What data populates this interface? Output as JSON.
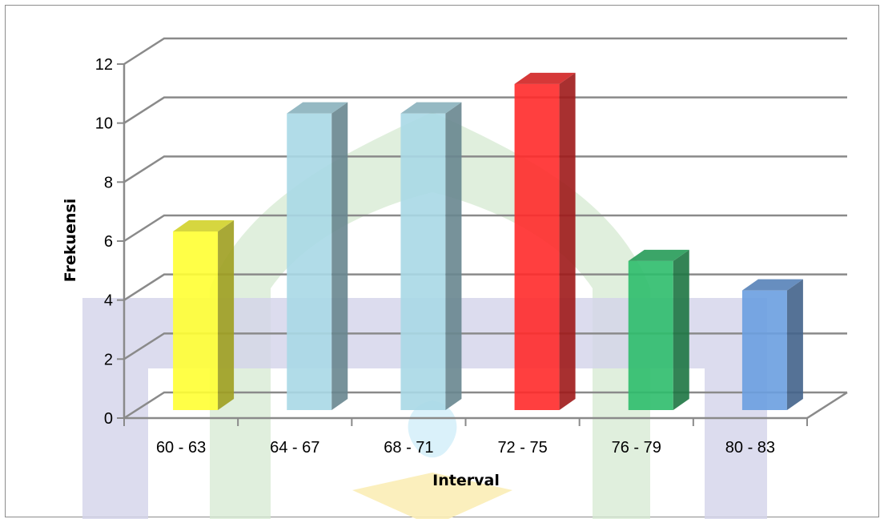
{
  "chart_data": {
    "type": "bar",
    "style": "3d-column",
    "categories": [
      "60 - 63",
      "64 - 67",
      "68 - 71",
      "72 - 75",
      "76 - 79",
      "80 - 83"
    ],
    "values": [
      6,
      10,
      10,
      11,
      5,
      4
    ],
    "bar_colors": [
      "#ffff33",
      "#a8d8e6",
      "#a8d8e6",
      "#ff2a2a",
      "#2ebd6b",
      "#6a9fe0"
    ],
    "xlabel": "Interval",
    "ylabel": "Frekuensi",
    "ylim": [
      0,
      12
    ],
    "yticks": [
      0,
      2,
      4,
      6,
      8,
      10,
      12
    ],
    "grid": true,
    "legend": "none"
  },
  "watermark": {
    "colors": [
      "#d3d3ea",
      "#d6ead2",
      "#fbedb6",
      "#d6f0fa"
    ]
  }
}
